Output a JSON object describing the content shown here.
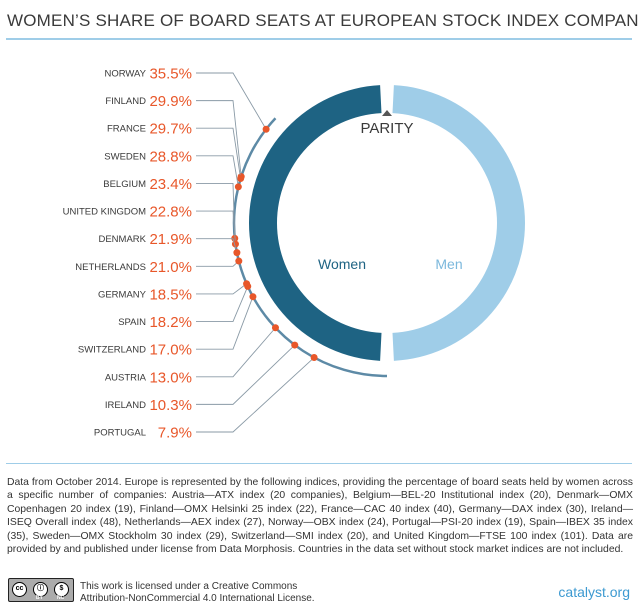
{
  "title": "WOMEN’S SHARE OF BOARD SEATS AT EUROPEAN STOCK INDEX COMPANIES",
  "chart_data": {
    "type": "donut-with-dot-scale",
    "countries": [
      {
        "name": "NORWAY",
        "value": 35.5,
        "label": "35.5%"
      },
      {
        "name": "FINLAND",
        "value": 29.9,
        "label": "29.9%"
      },
      {
        "name": "FRANCE",
        "value": 29.7,
        "label": "29.7%"
      },
      {
        "name": "SWEDEN",
        "value": 28.8,
        "label": "28.8%"
      },
      {
        "name": "BELGIUM",
        "value": 23.4,
        "label": "23.4%"
      },
      {
        "name": "UNITED KINGDOM",
        "value": 22.8,
        "label": "22.8%"
      },
      {
        "name": "DENMARK",
        "value": 21.9,
        "label": "21.9%"
      },
      {
        "name": "NETHERLANDS",
        "value": 21.0,
        "label": "21.0%"
      },
      {
        "name": "GERMANY",
        "value": 18.5,
        "label": "18.5%"
      },
      {
        "name": "SPAIN",
        "value": 18.2,
        "label": "18.2%"
      },
      {
        "name": "SWITZERLAND",
        "value": 17.0,
        "label": "17.0%"
      },
      {
        "name": "AUSTRIA",
        "value": 13.0,
        "label": "13.0%"
      },
      {
        "name": "IRELAND",
        "value": 10.3,
        "label": "10.3%"
      },
      {
        "name": "PORTUGAL",
        "value": 7.9,
        "label": "7.9%"
      }
    ],
    "donut": {
      "women_label": "Women",
      "men_label": "Men",
      "parity_label": "PARITY",
      "women_share": 50,
      "men_share": 50
    },
    "scale_range": [
      0,
      50
    ]
  },
  "colors": {
    "women": "#1e6383",
    "men": "#9fcde8",
    "dot": "#e8572a",
    "value_text": "#e8572a",
    "label_text": "#3a3a3a",
    "scale": "#5d8aa6"
  },
  "note": "Data from October 2014. Europe is represented by the following indices, providing the percentage of board seats held by women across a specific number of companies: Austria—ATX index (20 companies), Belgium—BEL-20 Institutional index (20), Denmark—OMX Copenhagen 20 index (19), Finland—OMX Helsinki 25 index (22), France—CAC 40 index (40), Germany—DAX index (30), Ireland—ISEQ Overall index (48), Netherlands—AEX index (27), Norway—OBX index (24), Portugal—PSI-20 index (19), Spain—IBEX 35 index (35), Sweden—OMX Stockholm 30 index (29), Switzerland—SMI index (20), and United Kingdom—FTSE 100 index (101). Data are provided by and published under license from Data Morphosis. Countries in the data set without stock market indices are not included.",
  "license": {
    "line1": "This work is licensed under a Creative Commons",
    "line2": "Attribution-NonCommercial 4.0 International License.",
    "badge_by": "BY",
    "badge_nc": "NC"
  },
  "site": "catalyst.org"
}
